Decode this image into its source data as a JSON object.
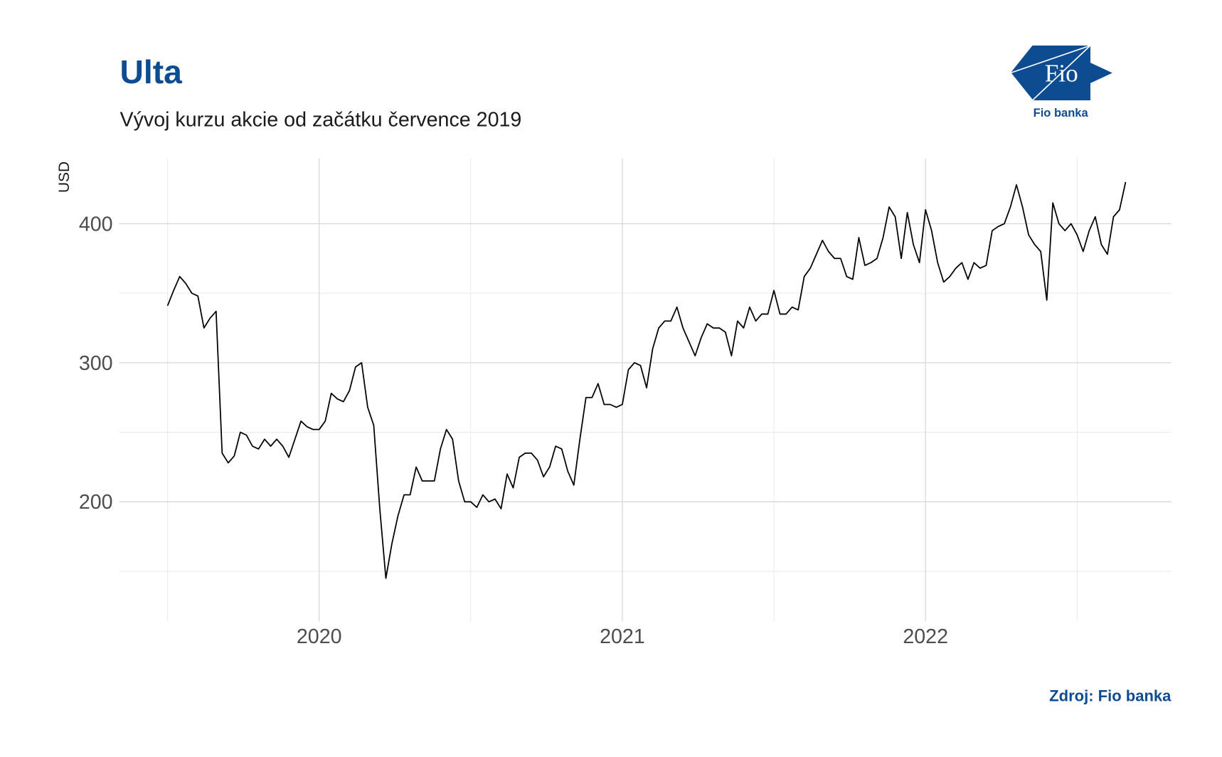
{
  "chart_data": {
    "type": "line",
    "title": "Ulta",
    "subtitle": "Vývoj kurzu akcie od začátku července 2019",
    "y_label": "USD",
    "source": "Zdroj: Fio banka",
    "color": "#000000",
    "grid": true,
    "xlim": [
      2019.34,
      2022.81
    ],
    "ylim": [
      114,
      447
    ],
    "xticks": [
      2020,
      2021,
      2022
    ],
    "yticks": [
      200,
      300,
      400
    ],
    "xminor": [
      2019.5,
      2020.5,
      2021.5,
      2022.5
    ],
    "yminor": [
      150,
      250,
      350
    ],
    "x": [
      2019.5,
      2019.52,
      2019.54,
      2019.56,
      2019.58,
      2019.6,
      2019.62,
      2019.64,
      2019.66,
      2019.68,
      2019.7,
      2019.72,
      2019.74,
      2019.76,
      2019.78,
      2019.8,
      2019.82,
      2019.84,
      2019.86,
      2019.88,
      2019.9,
      2019.92,
      2019.94,
      2019.96,
      2019.98,
      2020.0,
      2020.02,
      2020.04,
      2020.06,
      2020.08,
      2020.1,
      2020.12,
      2020.14,
      2020.16,
      2020.18,
      2020.2,
      2020.22,
      2020.24,
      2020.26,
      2020.28,
      2020.3,
      2020.32,
      2020.34,
      2020.36,
      2020.38,
      2020.4,
      2020.42,
      2020.44,
      2020.46,
      2020.48,
      2020.5,
      2020.52,
      2020.54,
      2020.56,
      2020.58,
      2020.6,
      2020.62,
      2020.64,
      2020.66,
      2020.68,
      2020.7,
      2020.72,
      2020.74,
      2020.76,
      2020.78,
      2020.8,
      2020.82,
      2020.84,
      2020.86,
      2020.88,
      2020.9,
      2020.92,
      2020.94,
      2020.96,
      2020.98,
      2021.0,
      2021.02,
      2021.04,
      2021.06,
      2021.08,
      2021.1,
      2021.12,
      2021.14,
      2021.16,
      2021.18,
      2021.2,
      2021.22,
      2021.24,
      2021.26,
      2021.28,
      2021.3,
      2021.32,
      2021.34,
      2021.36,
      2021.38,
      2021.4,
      2021.42,
      2021.44,
      2021.46,
      2021.48,
      2021.5,
      2021.52,
      2021.54,
      2021.56,
      2021.58,
      2021.6,
      2021.62,
      2021.64,
      2021.66,
      2021.68,
      2021.7,
      2021.72,
      2021.74,
      2021.76,
      2021.78,
      2021.8,
      2021.82,
      2021.84,
      2021.86,
      2021.88,
      2021.9,
      2021.92,
      2021.94,
      2021.96,
      2021.98,
      2022.0,
      2022.02,
      2022.04,
      2022.06,
      2022.08,
      2022.1,
      2022.12,
      2022.14,
      2022.16,
      2022.18,
      2022.2,
      2022.22,
      2022.24,
      2022.26,
      2022.28,
      2022.3,
      2022.32,
      2022.34,
      2022.36,
      2022.38,
      2022.4,
      2022.42,
      2022.44,
      2022.46,
      2022.48,
      2022.5,
      2022.52,
      2022.54,
      2022.56,
      2022.58,
      2022.6,
      2022.62,
      2022.64,
      2022.66
    ],
    "values": [
      341,
      352,
      362,
      357,
      350,
      348,
      325,
      332,
      337,
      235,
      228,
      233,
      250,
      248,
      240,
      238,
      245,
      240,
      245,
      240,
      232,
      245,
      258,
      254,
      252,
      252,
      258,
      278,
      274,
      272,
      280,
      297,
      300,
      268,
      255,
      195,
      145,
      170,
      190,
      205,
      205,
      225,
      215,
      215,
      215,
      238,
      252,
      245,
      215,
      200,
      200,
      196,
      205,
      200,
      202,
      195,
      220,
      210,
      232,
      235,
      235,
      230,
      218,
      225,
      240,
      238,
      222,
      212,
      245,
      275,
      275,
      285,
      270,
      270,
      268,
      270,
      295,
      300,
      298,
      282,
      310,
      325,
      330,
      330,
      340,
      325,
      315,
      305,
      318,
      328,
      325,
      325,
      322,
      305,
      330,
      325,
      340,
      330,
      335,
      335,
      352,
      335,
      335,
      340,
      338,
      362,
      368,
      378,
      388,
      380,
      375,
      375,
      362,
      360,
      390,
      370,
      372,
      375,
      390,
      412,
      405,
      375,
      408,
      385,
      372,
      410,
      395,
      372,
      358,
      362,
      368,
      372,
      360,
      372,
      368,
      370,
      395,
      398,
      400,
      412,
      428,
      412,
      392,
      385,
      380,
      345,
      415,
      400,
      395,
      400,
      392,
      380,
      395,
      405,
      385,
      378,
      405,
      410,
      430
    ]
  },
  "logo": {
    "mark": "Fio",
    "caption": "Fio banka"
  }
}
